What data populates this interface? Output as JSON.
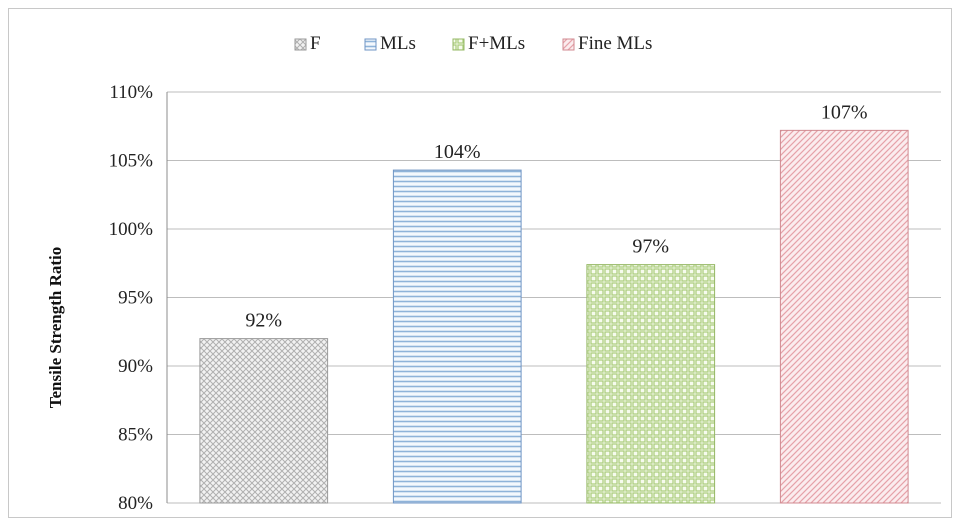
{
  "chart_data": {
    "type": "bar",
    "title": "",
    "xlabel": "",
    "ylabel": "Tensile Strength Ratio",
    "ylim": [
      80,
      110
    ],
    "y_ticks": [
      80,
      85,
      90,
      95,
      100,
      105,
      110
    ],
    "y_tick_labels": [
      "80%",
      "85%",
      "90%",
      "95%",
      "100%",
      "105%",
      "110%"
    ],
    "grid": true,
    "legend_position": "top",
    "categories": [
      "F",
      "MLs",
      "F+MLs",
      "Fine MLs"
    ],
    "values": [
      92,
      104.3,
      97.4,
      107.2
    ],
    "data_labels": [
      "92%",
      "104%",
      "97%",
      "107%"
    ],
    "series": [
      {
        "name": "F",
        "pattern": "dots",
        "color": "#bdbdbd",
        "edge": "#9a9a9a"
      },
      {
        "name": "MLs",
        "pattern": "horizontal",
        "color": "#8fb3d9",
        "edge": "#6f95c4"
      },
      {
        "name": "F+MLs",
        "pattern": "grid",
        "color": "#b6d38a",
        "edge": "#95b865"
      },
      {
        "name": "Fine MLs",
        "pattern": "diagonal",
        "color": "#e8a8ad",
        "edge": "#d08a90"
      }
    ]
  }
}
